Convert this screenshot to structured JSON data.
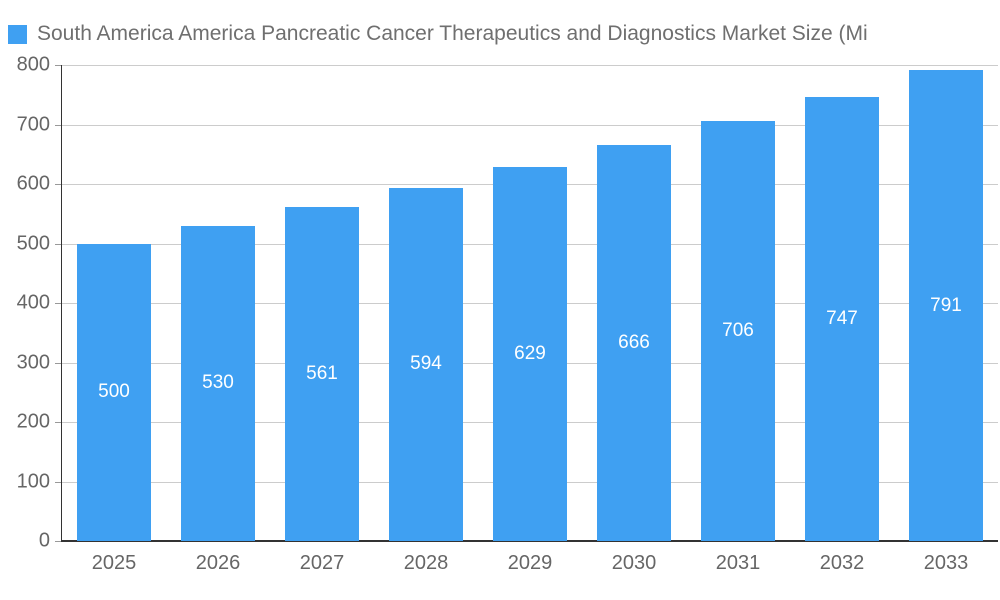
{
  "legend": {
    "swatch_color": "#3fa0f2"
  },
  "chart_data": {
    "type": "bar",
    "title": "South America America Pancreatic Cancer Therapeutics and Diagnostics Market Size (Mi",
    "categories": [
      "2025",
      "2026",
      "2027",
      "2028",
      "2029",
      "2030",
      "2031",
      "2032",
      "2033"
    ],
    "values": [
      500,
      530,
      561,
      594,
      629,
      666,
      706,
      747,
      791
    ],
    "value_labels": [
      "500",
      "530",
      "561",
      "594",
      "629",
      "666",
      "706",
      "747",
      "791"
    ],
    "xlabel": "",
    "ylabel": "",
    "ylim": [
      0,
      800
    ],
    "yticks": [
      0,
      100,
      200,
      300,
      400,
      500,
      600,
      700,
      800
    ],
    "grid": true,
    "legend_position": "top-left",
    "bar_color": "#3fa0f2",
    "bar_label_color": "#ffffff",
    "axis_text_color": "#666666",
    "gridline_color": "#cccccc",
    "axis_line_color": "#333333"
  }
}
